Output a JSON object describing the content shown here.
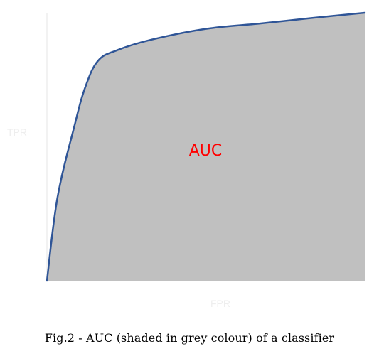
{
  "chart_data": {
    "type": "area",
    "title": "",
    "xlabel": "FPR",
    "ylabel": "TPR",
    "xlim": [
      0,
      1
    ],
    "ylim": [
      0,
      1
    ],
    "grid": false,
    "series": [
      {
        "x": [
          0,
          0.033,
          0.087,
          0.12,
          0.16,
          0.22,
          0.33,
          0.5,
          0.67,
          0.83,
          1
        ],
        "y": [
          0,
          0.31,
          0.58,
          0.72,
          0.82,
          0.86,
          0.9,
          0.94,
          0.96,
          0.98,
          1
        ]
      }
    ],
    "annotation": "AUC",
    "colors": {
      "fill": "#c0c0c0",
      "curve": "#2f5597",
      "annotation": "#ff0000"
    }
  },
  "caption": "Fig.2 - AUC (shaded in grey colour)  of a classifier",
  "colors": {
    "axis": "#f2f2f2",
    "faint_text": "#eeeeee"
  }
}
